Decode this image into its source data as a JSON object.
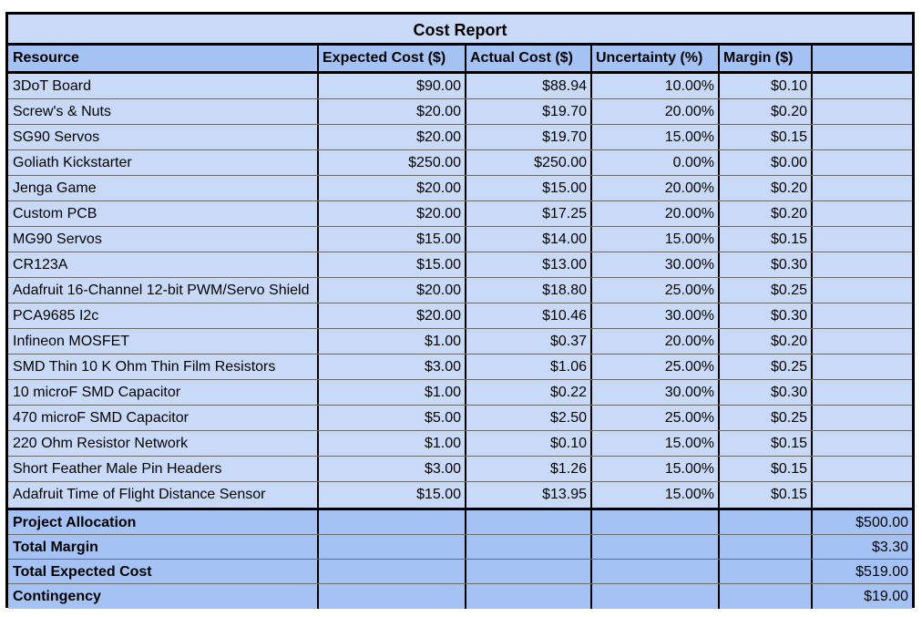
{
  "title": "Cost Report",
  "columns": [
    "Resource",
    "Expected Cost ($)",
    "Actual Cost ($)",
    "Uncertainty (%)",
    "Margin ($)",
    ""
  ],
  "rows": [
    [
      "3DoT Board",
      "$90.00",
      "$88.94",
      "10.00%",
      "$0.10"
    ],
    [
      "Screw's & Nuts",
      "$20.00",
      "$19.70",
      "20.00%",
      "$0.20"
    ],
    [
      "SG90 Servos",
      "$20.00",
      "$19.70",
      "15.00%",
      "$0.15"
    ],
    [
      "Goliath Kickstarter",
      "$250.00",
      "$250.00",
      "0.00%",
      "$0.00"
    ],
    [
      "Jenga Game",
      "$20.00",
      "$15.00",
      "20.00%",
      "$0.20"
    ],
    [
      "Custom PCB",
      "$20.00",
      "$17.25",
      "20.00%",
      "$0.20"
    ],
    [
      "MG90 Servos",
      "$15.00",
      "$14.00",
      "15.00%",
      "$0.15"
    ],
    [
      "CR123A",
      "$15.00",
      "$13.00",
      "30.00%",
      "$0.30"
    ],
    [
      "Adafruit 16-Channel 12-bit PWM/Servo Shield",
      "$20.00",
      "$18.80",
      "25.00%",
      "$0.25"
    ],
    [
      "PCA9685 I2c",
      "$20.00",
      "$10.46",
      "30.00%",
      "$0.30"
    ],
    [
      "Infineon MOSFET",
      "$1.00",
      "$0.37",
      "20.00%",
      "$0.20"
    ],
    [
      "SMD Thin 10 K Ohm Thin Film Resistors",
      "$3.00",
      "$1.06",
      "25.00%",
      "$0.25"
    ],
    [
      "10 microF SMD Capacitor",
      "$1.00",
      "$0.22",
      "30.00%",
      "$0.30"
    ],
    [
      "470 microF SMD Capacitor",
      "$5.00",
      "$2.50",
      "25.00%",
      "$0.25"
    ],
    [
      "220 Ohm Resistor Network",
      "$1.00",
      "$0.10",
      "15.00%",
      "$0.15"
    ],
    [
      "Short Feather Male Pin Headers",
      "$3.00",
      "$1.26",
      "15.00%",
      "$0.15"
    ],
    [
      "Adafruit Time of Flight Distance Sensor",
      "$15.00",
      "$13.95",
      "15.00%",
      "$0.15"
    ]
  ],
  "summary": [
    {
      "label": "Project Allocation",
      "value": "$500.00"
    },
    {
      "label": "Total Margin",
      "value": "$3.30"
    },
    {
      "label": "Total Expected Cost",
      "value": "$519.00"
    },
    {
      "label": "Contingency",
      "value": "$19.00"
    }
  ],
  "colors": {
    "cell_bg": "#c9daf8",
    "header_bg": "#a4c2f4",
    "border": "#000000"
  }
}
